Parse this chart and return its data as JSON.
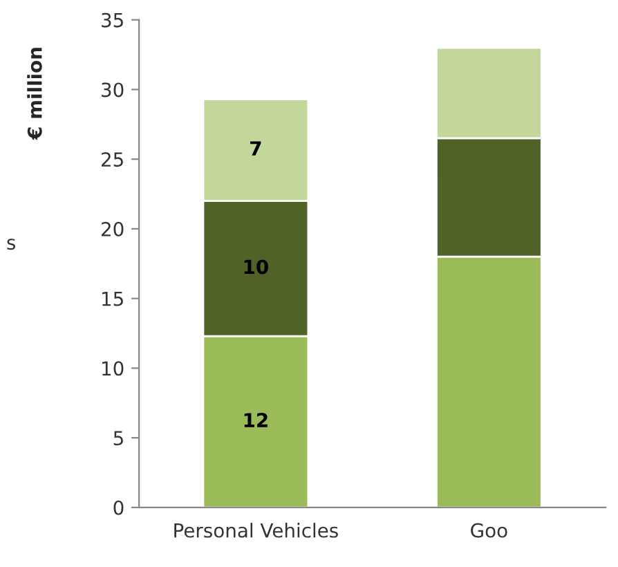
{
  "chart_data": {
    "type": "bar",
    "stacked": true,
    "ylabel": "€ million",
    "categories": [
      "Personal Vehicles",
      "Goo"
    ],
    "series": [
      {
        "color": "#9bbb59",
        "values": [
          12.3,
          18
        ],
        "value_labels": [
          "12",
          null
        ]
      },
      {
        "color": "#4f6228",
        "values": [
          9.7,
          8.5
        ],
        "value_labels": [
          "10",
          null
        ]
      },
      {
        "color": "#c4d79b",
        "values": [
          7.3,
          6.5
        ],
        "value_labels": [
          "7",
          null
        ]
      }
    ],
    "ylim": [
      0,
      35
    ],
    "yticks": [
      0,
      5,
      10,
      15,
      20,
      25,
      30,
      35
    ],
    "grid": false,
    "legend": false,
    "annotations": [
      "s"
    ]
  }
}
